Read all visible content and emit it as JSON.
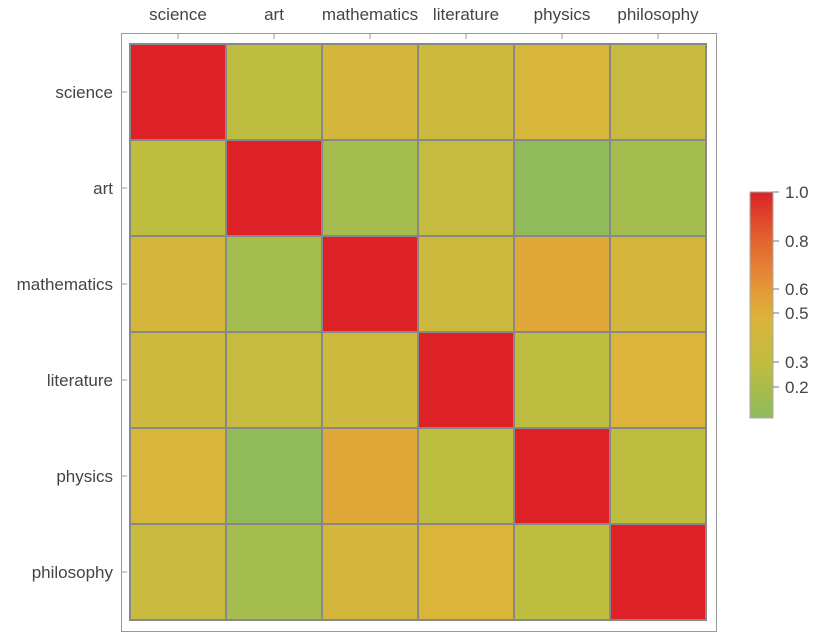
{
  "chart_data": {
    "type": "heatmap",
    "title": "",
    "categories": [
      "science",
      "art",
      "mathematics",
      "literature",
      "physics",
      "philosophy"
    ],
    "values": [
      [
        1.0,
        0.3,
        0.45,
        0.4,
        0.48,
        0.37
      ],
      [
        0.3,
        1.0,
        0.2,
        0.35,
        0.12,
        0.2
      ],
      [
        0.45,
        0.2,
        1.0,
        0.4,
        0.55,
        0.45
      ],
      [
        0.4,
        0.35,
        0.4,
        1.0,
        0.3,
        0.5
      ],
      [
        0.48,
        0.12,
        0.55,
        0.3,
        1.0,
        0.3
      ],
      [
        0.37,
        0.2,
        0.45,
        0.5,
        0.3,
        1.0
      ]
    ],
    "legend": {
      "placement": "right",
      "ticks": [
        "1.0",
        "0.8",
        "0.6",
        "0.5",
        "0.3",
        "0.2"
      ],
      "tick_values": [
        1.0,
        0.8,
        0.6,
        0.5,
        0.3,
        0.2
      ],
      "range": [
        0.1,
        1.0
      ]
    },
    "color_stops": [
      [
        0.1,
        "#8cbb5e"
      ],
      [
        0.3,
        "#bdbd40"
      ],
      [
        0.5,
        "#dbb43a"
      ],
      [
        0.6,
        "#e49b37"
      ],
      [
        0.8,
        "#e3662f"
      ],
      [
        1.0,
        "#dc2226"
      ]
    ]
  }
}
